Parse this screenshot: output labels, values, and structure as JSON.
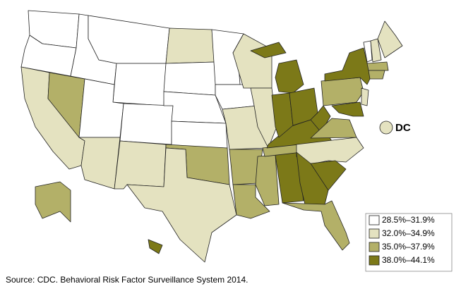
{
  "legend": [
    {
      "label": "28.5%–31.9%",
      "color": "#ffffff"
    },
    {
      "label": "32.0%–34.9%",
      "color": "#e4e2c0"
    },
    {
      "label": "35.0%–37.9%",
      "color": "#b3b068"
    },
    {
      "label": "38.0%–44.1%",
      "color": "#7c7918"
    }
  ],
  "dc": {
    "label": "DC"
  },
  "source": "Source: CDC. Behavioral Risk Factor Surveillance System 2014."
}
